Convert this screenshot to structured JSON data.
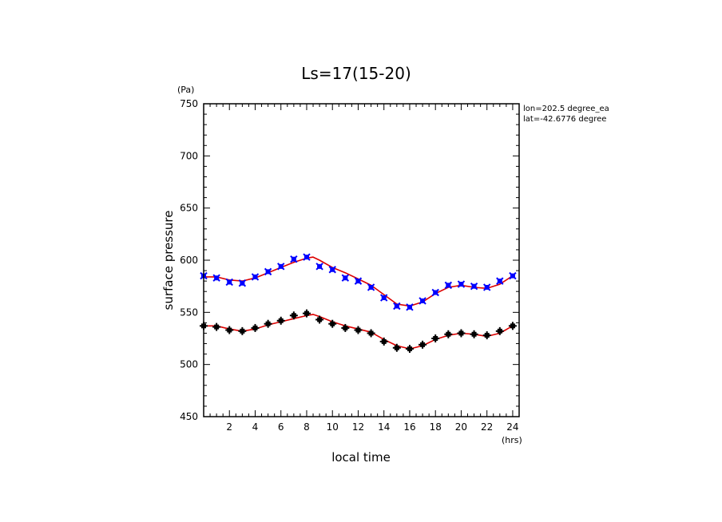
{
  "chart_data": {
    "type": "scatter",
    "title": "Ls=17(15-20)",
    "xlabel": "local time",
    "ylabel": "surface pressure",
    "x_unit": "(hrs)",
    "y_unit": "(Pa)",
    "xlim": [
      0,
      24.5
    ],
    "ylim": [
      450,
      750
    ],
    "x_ticks": [
      2,
      4,
      6,
      8,
      10,
      12,
      14,
      16,
      18,
      20,
      22,
      24
    ],
    "y_ticks": [
      450,
      500,
      550,
      600,
      650,
      700,
      750
    ],
    "annotations": [
      "lon=202.5 degree_ea",
      "lat=-42.6776 degree"
    ],
    "colors": {
      "upper_markers": "#0000ff",
      "lower_markers": "#000000",
      "fit_line": "#dd0000"
    },
    "series": [
      {
        "marker": "x",
        "color": "#0000ff",
        "x": [
          0,
          1,
          2,
          3,
          4,
          5,
          6,
          7,
          8,
          9,
          10,
          11,
          12,
          13,
          14,
          15,
          16,
          17,
          18,
          19,
          20,
          21,
          22,
          23,
          24
        ],
        "values": [
          585,
          583,
          579,
          578,
          584,
          589,
          594,
          601,
          603,
          594,
          591,
          583,
          580,
          574,
          564,
          556,
          555,
          561,
          569,
          576,
          577,
          575,
          574,
          580,
          585
        ]
      },
      {
        "marker": "+",
        "color": "#000000",
        "x": [
          0,
          1,
          2,
          3,
          4,
          5,
          6,
          7,
          8,
          9,
          10,
          11,
          12,
          13,
          14,
          15,
          16,
          17,
          18,
          19,
          20,
          21,
          22,
          23,
          24
        ],
        "values": [
          537,
          536,
          533,
          532,
          535,
          539,
          542,
          547,
          549,
          543,
          539,
          535,
          533,
          530,
          522,
          516,
          515,
          519,
          525,
          529,
          530,
          529,
          528,
          532,
          537
        ]
      },
      {
        "marker": "line",
        "color": "#dd0000",
        "x": [
          0,
          1,
          2,
          3,
          4,
          5,
          6,
          7,
          8,
          8.5,
          9,
          10,
          11,
          12,
          13,
          14,
          15,
          16,
          17,
          18,
          19,
          20,
          21,
          22,
          23,
          24
        ],
        "values": [
          584,
          584,
          581,
          580,
          583,
          588,
          593,
          598,
          602,
          603,
          600,
          593,
          588,
          582,
          576,
          567,
          558,
          556,
          560,
          568,
          574,
          576,
          574,
          573,
          577,
          585
        ]
      },
      {
        "marker": "line",
        "color": "#dd0000",
        "x": [
          0,
          1,
          2,
          3,
          4,
          5,
          6,
          7,
          8,
          8.5,
          9,
          10,
          11,
          12,
          13,
          14,
          15,
          16,
          17,
          18,
          19,
          20,
          21,
          22,
          23,
          24
        ],
        "values": [
          537,
          537,
          534,
          532,
          534,
          538,
          541,
          544,
          547,
          548,
          546,
          541,
          537,
          534,
          531,
          524,
          518,
          515,
          518,
          524,
          528,
          530,
          529,
          527,
          530,
          537
        ]
      }
    ]
  }
}
